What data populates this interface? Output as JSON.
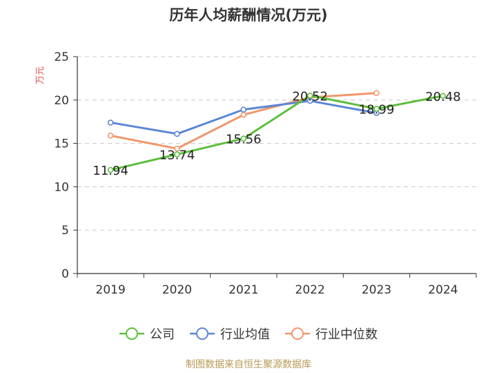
{
  "chart_data": {
    "type": "line",
    "title": "历年人均薪酬情况(万元)",
    "ylabel": "万元",
    "categories": [
      "2019",
      "2020",
      "2021",
      "2022",
      "2023",
      "2024"
    ],
    "ylim": [
      0,
      25
    ],
    "yticks": [
      0,
      5,
      10,
      15,
      20,
      25
    ],
    "grid": true,
    "legend_position": "bottom",
    "series": [
      {
        "name": "公司",
        "color": "#5cbf3a",
        "values": [
          11.94,
          13.74,
          15.56,
          20.52,
          18.99,
          20.48
        ],
        "labels": [
          "11.94",
          "13.74",
          "15.56",
          "20.52",
          "18.99",
          "20.48"
        ]
      },
      {
        "name": "行业均值",
        "color": "#5b86d6",
        "values": [
          17.4,
          16.1,
          18.9,
          19.9,
          18.5,
          null
        ]
      },
      {
        "name": "行业中位数",
        "color": "#f0966a",
        "values": [
          15.9,
          14.4,
          18.3,
          20.3,
          20.8,
          null
        ]
      }
    ],
    "source": "制图数据来自恒生聚源数据库"
  }
}
